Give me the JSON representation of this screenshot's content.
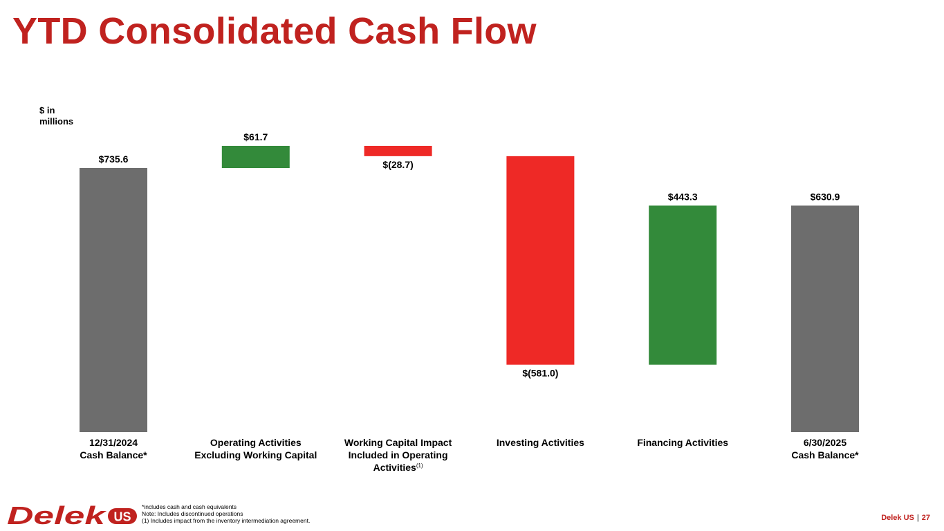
{
  "title": "YTD Consolidated Cash Flow",
  "unit_label": "$ in millions",
  "chart_data": {
    "type": "waterfall",
    "categories": [
      {
        "line1": "12/31/2024",
        "line2": "Cash Balance*",
        "line3": "",
        "sup": ""
      },
      {
        "line1": "Operating Activities",
        "line2": "Excluding Working Capital",
        "line3": "",
        "sup": ""
      },
      {
        "line1": "Working Capital Impact",
        "line2": "Included in Operating",
        "line3": "Activities",
        "sup": "(1)"
      },
      {
        "line1": "Investing Activities",
        "line2": "",
        "line3": "",
        "sup": ""
      },
      {
        "line1": "Financing Activities",
        "line2": "",
        "line3": "",
        "sup": ""
      },
      {
        "line1": "6/30/2025",
        "line2": "Cash Balance*",
        "line3": "",
        "sup": ""
      }
    ],
    "values": [
      735.6,
      61.7,
      -28.7,
      -581.0,
      443.3,
      630.9
    ],
    "labels": [
      "$735.6",
      "$61.7",
      "$(28.7)",
      "$(581.0)",
      "$443.3",
      "$630.9"
    ],
    "kinds": [
      "total",
      "delta",
      "delta",
      "delta",
      "delta",
      "total"
    ],
    "colors": {
      "total": "#6d6d6d",
      "increase": "#338a3a",
      "decrease": "#ee2926"
    },
    "grid": false
  },
  "footnotes": [
    "*includes cash and cash equivalents",
    "Note: Includes discontinued operations",
    "(1) Includes impact from the inventory intermediation agreement."
  ],
  "footer": {
    "company": "Delek US",
    "page": "27"
  },
  "logo": {
    "icon": "delek-us-logo",
    "text": "Delek US",
    "color": "#c0221f"
  }
}
